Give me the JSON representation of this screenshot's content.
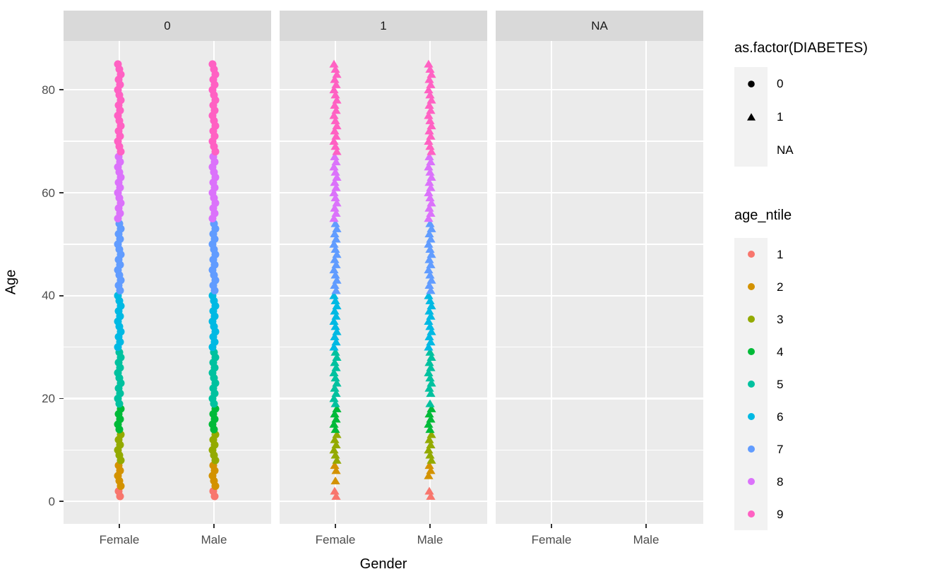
{
  "chart_data": {
    "type": "scatter",
    "title": "",
    "xlabel": "Gender",
    "ylabel": "Age",
    "facet_variable": "as.factor(DIABETES)",
    "facets": [
      "0",
      "1",
      "NA"
    ],
    "x_categories": [
      "Female",
      "Male"
    ],
    "y_major_ticks": [
      0,
      20,
      40,
      60,
      80
    ],
    "y_minor_ticks": [
      10,
      30,
      50,
      70
    ],
    "ylim": [
      -4,
      89
    ],
    "grid": true,
    "legend_position": "right",
    "shape_legend": {
      "title": "as.factor(DIABETES)",
      "entries": [
        {
          "label": "0",
          "shape": "circle"
        },
        {
          "label": "1",
          "shape": "triangle"
        },
        {
          "label": "NA",
          "shape": "none"
        }
      ]
    },
    "color_legend": {
      "title": "age_ntile",
      "entries": [
        {
          "label": "1",
          "color": "#F8766D"
        },
        {
          "label": "2",
          "color": "#D39200"
        },
        {
          "label": "3",
          "color": "#93AA00"
        },
        {
          "label": "4",
          "color": "#00BA38"
        },
        {
          "label": "5",
          "color": "#00C19F"
        },
        {
          "label": "6",
          "color": "#00B9E3"
        },
        {
          "label": "7",
          "color": "#619CFF"
        },
        {
          "label": "8",
          "color": "#DB72FB"
        },
        {
          "label": "9",
          "color": "#FF61C3"
        }
      ]
    },
    "age_ntile_upper_bounds": [
      2,
      7,
      13,
      18,
      29,
      40,
      54,
      67,
      85
    ],
    "series": [
      {
        "facet": "0",
        "x": "Female",
        "shape": "circle",
        "ages": "1-85"
      },
      {
        "facet": "0",
        "x": "Male",
        "shape": "circle",
        "ages": "1-85"
      },
      {
        "facet": "1",
        "x": "Female",
        "shape": "triangle",
        "ages": "1-2,4,6-85"
      },
      {
        "facet": "1",
        "x": "Male",
        "shape": "triangle",
        "ages": "1-2,5-19,21-85"
      },
      {
        "facet": "NA",
        "x": "Female",
        "shape": "none",
        "ages": ""
      },
      {
        "facet": "NA",
        "x": "Male",
        "shape": "none",
        "ages": ""
      }
    ]
  },
  "colors": {
    "panel_bg": "#EBEBEB",
    "strip_bg": "#D9D9D9",
    "gridline": "#FFFFFF",
    "legend_key_bg": "#F2F2F2",
    "axis_text": "#4D4D4D",
    "tick_mark": "#333333",
    "text": "#000000",
    "shape_glyph": "#000000"
  }
}
